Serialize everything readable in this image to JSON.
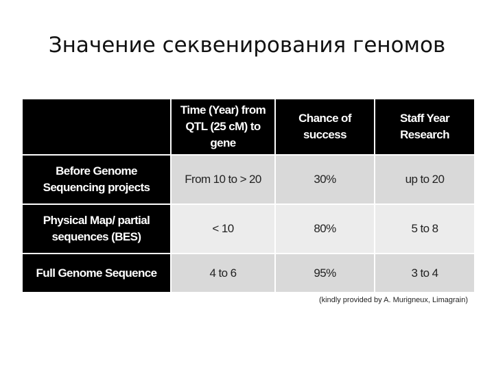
{
  "title": "Значение секвенирования геномов",
  "table": {
    "header": [
      "Time (Year) from QTL (25 cM) to gene",
      "Chance of success",
      "Staff Year Research"
    ],
    "rows": [
      [
        "Before Genome Sequencing projects",
        "From 10 to > 20",
        "30%",
        "up to 20"
      ],
      [
        "Physical Map/ partial sequences (BES)",
        "< 10",
        "80%",
        "5 to 8"
      ],
      [
        "Full Genome Sequence",
        "4 to 6",
        "95%",
        "3 to 4"
      ]
    ]
  },
  "credit": "(kindly provided by A. Murigneux, Limagrain)"
}
